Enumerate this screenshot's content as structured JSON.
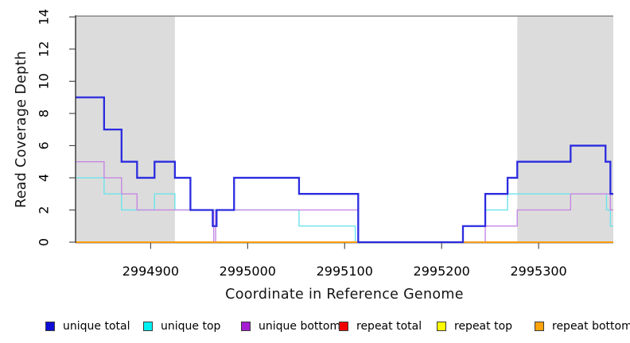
{
  "figure": {
    "x_title": "Coordinate in Reference Genome",
    "y_title": "Read Coverage Depth"
  },
  "legend": {
    "items": [
      {
        "label": "unique total",
        "color": "#0d0dd6"
      },
      {
        "label": "unique top",
        "color": "#00f2f2"
      },
      {
        "label": "unique bottom",
        "color": "#a51ed3"
      },
      {
        "label": "repeat total",
        "color": "#f20000"
      },
      {
        "label": "repeat top",
        "color": "#fdfd00"
      },
      {
        "label": "repeat bottom",
        "color": "#ffa40a"
      }
    ]
  },
  "chart_data": {
    "type": "line",
    "subtype": "step-coverage",
    "title": "",
    "xlabel": "Coordinate in Reference Genome",
    "ylabel": "Read Coverage Depth",
    "xlim": [
      2994823,
      2995377
    ],
    "ylim": [
      0,
      14
    ],
    "x_ticks": [
      2994900,
      2995000,
      2995100,
      2995200,
      2995300
    ],
    "y_ticks": [
      0,
      2,
      4,
      6,
      8,
      10,
      12,
      14
    ],
    "grid": false,
    "legend_position": "bottom",
    "band_color": "#dcdcdc",
    "ref_line_color": "#8a8a8a",
    "ref_line_y": 14,
    "shaded_regions": [
      [
        2994823,
        2994925
      ],
      [
        2995278,
        2995377
      ]
    ],
    "series": [
      {
        "name": "repeat total",
        "color": "#e00000",
        "width": 1.4,
        "steps": [
          [
            2994823,
            0
          ]
        ],
        "end": 2995377
      },
      {
        "name": "repeat top",
        "color": "#f0f000",
        "width": 1.4,
        "steps": [
          [
            2994823,
            0
          ]
        ],
        "end": 2995377
      },
      {
        "name": "unique top",
        "color": "#6ce4ea",
        "width": 1.4,
        "steps": [
          [
            2994823,
            4
          ],
          [
            2994852,
            3
          ],
          [
            2994870,
            2
          ],
          [
            2994904,
            3
          ],
          [
            2994925,
            2
          ],
          [
            2995053,
            1
          ],
          [
            2995111,
            0
          ],
          [
            2995222,
            1
          ],
          [
            2995245,
            2
          ],
          [
            2995268,
            3
          ],
          [
            2995370,
            2
          ],
          [
            2995374,
            1
          ]
        ],
        "end": 2995377
      },
      {
        "name": "unique bottom",
        "color": "#c687e2",
        "width": 1.4,
        "steps": [
          [
            2994823,
            5
          ],
          [
            2994852,
            4
          ],
          [
            2994870,
            3
          ],
          [
            2994886,
            2
          ],
          [
            2994965,
            0
          ],
          [
            2994967,
            2
          ],
          [
            2995114,
            0
          ],
          [
            2995245,
            1
          ],
          [
            2995278,
            2
          ],
          [
            2995333,
            3
          ],
          [
            2995374,
            2
          ]
        ],
        "end": 2995377
      },
      {
        "name": "repeat bottom",
        "color": "#ff9d0c",
        "width": 1.7,
        "steps": [
          [
            2994823,
            0
          ]
        ],
        "end": 2995377
      },
      {
        "name": "unique total",
        "color": "#2b2be0",
        "width": 2.3,
        "steps": [
          [
            2994823,
            9
          ],
          [
            2994852,
            7
          ],
          [
            2994870,
            5
          ],
          [
            2994886,
            4
          ],
          [
            2994904,
            5
          ],
          [
            2994925,
            4
          ],
          [
            2994941,
            2
          ],
          [
            2994964,
            1
          ],
          [
            2994968,
            2
          ],
          [
            2994986,
            4
          ],
          [
            2995053,
            3
          ],
          [
            2995114,
            0
          ],
          [
            2995222,
            1
          ],
          [
            2995245,
            3
          ],
          [
            2995268,
            4
          ],
          [
            2995278,
            5
          ],
          [
            2995333,
            6
          ],
          [
            2995369,
            5
          ],
          [
            2995374,
            3
          ]
        ],
        "end": 2995377
      }
    ]
  }
}
